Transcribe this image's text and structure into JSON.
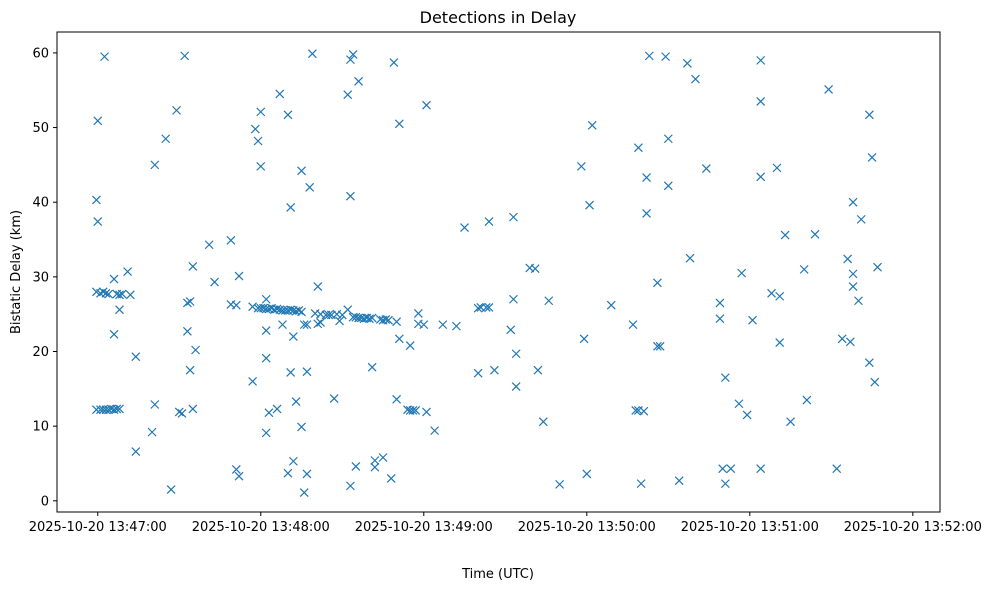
{
  "chart_data": {
    "type": "scatter",
    "title": "Detections in Delay",
    "xlabel": "Time (UTC)",
    "ylabel": "Bistatic Delay (km)",
    "marker": "x",
    "color": "#1f77b4",
    "grid": false,
    "legend": false,
    "x_units": "seconds after 2025-10-20 13:47:00 UTC",
    "xlim": [
      -15,
      310
    ],
    "ylim": [
      -1.5,
      62.8
    ],
    "x_ticks": [
      0,
      60,
      120,
      180,
      240,
      300
    ],
    "x_tick_labels": [
      "2025-10-20 13:47:00",
      "2025-10-20 13:48:00",
      "2025-10-20 13:49:00",
      "2025-10-20 13:50:00",
      "2025-10-20 13:51:00",
      "2025-10-20 13:52:00"
    ],
    "y_ticks": [
      0,
      10,
      20,
      30,
      40,
      50,
      60
    ],
    "y_tick_labels": [
      "0",
      "10",
      "20",
      "30",
      "40",
      "50",
      "60"
    ],
    "points": [
      [
        -0.5,
        40.3
      ],
      [
        0.0,
        37.4
      ],
      [
        0.0,
        50.9
      ],
      [
        2.5,
        59.5
      ],
      [
        6.0,
        29.7
      ],
      [
        11.0,
        30.7
      ],
      [
        -0.5,
        28.0
      ],
      [
        1.0,
        27.8
      ],
      [
        2.0,
        28.0
      ],
      [
        3.0,
        27.8
      ],
      [
        4.0,
        27.7
      ],
      [
        7.0,
        27.7
      ],
      [
        8.0,
        27.6
      ],
      [
        9.0,
        27.7
      ],
      [
        12.0,
        27.6
      ],
      [
        8.0,
        25.6
      ],
      [
        6.0,
        22.3
      ],
      [
        14.0,
        19.3
      ],
      [
        14.0,
        6.6
      ],
      [
        20.0,
        9.2
      ],
      [
        -0.5,
        12.2
      ],
      [
        1.0,
        12.2
      ],
      [
        2.0,
        12.2
      ],
      [
        3.0,
        12.2
      ],
      [
        4.0,
        12.2
      ],
      [
        5.0,
        12.3
      ],
      [
        6.0,
        12.2
      ],
      [
        7.0,
        12.3
      ],
      [
        8.0,
        12.3
      ],
      [
        21.0,
        45.0
      ],
      [
        21.0,
        12.9
      ],
      [
        25.0,
        48.5
      ],
      [
        27.0,
        1.5
      ],
      [
        29.0,
        52.3
      ],
      [
        30.0,
        11.9
      ],
      [
        31.0,
        11.7
      ],
      [
        32.0,
        59.6
      ],
      [
        33.0,
        26.5
      ],
      [
        34.0,
        26.7
      ],
      [
        33.0,
        22.7
      ],
      [
        34.0,
        17.5
      ],
      [
        35.0,
        31.4
      ],
      [
        35.0,
        12.3
      ],
      [
        36.0,
        20.2
      ],
      [
        41.0,
        34.3
      ],
      [
        43.0,
        29.3
      ],
      [
        49.0,
        34.9
      ],
      [
        49.0,
        26.3
      ],
      [
        51.0,
        26.2
      ],
      [
        51.0,
        4.2
      ],
      [
        52.0,
        30.1
      ],
      [
        52.0,
        3.3
      ],
      [
        57.0,
        26.0
      ],
      [
        57.0,
        16.0
      ],
      [
        58.0,
        49.8
      ],
      [
        59.0,
        48.2
      ],
      [
        60.0,
        52.1
      ],
      [
        60.0,
        44.8
      ],
      [
        59.0,
        25.8
      ],
      [
        60.0,
        25.8
      ],
      [
        61.0,
        25.8
      ],
      [
        62.0,
        25.7
      ],
      [
        63.0,
        25.7
      ],
      [
        64.0,
        25.8
      ],
      [
        65.0,
        25.6
      ],
      [
        66.0,
        25.7
      ],
      [
        67.0,
        25.6
      ],
      [
        68.0,
        25.5
      ],
      [
        69.0,
        25.5
      ],
      [
        70.0,
        25.5
      ],
      [
        71.0,
        25.6
      ],
      [
        72.0,
        25.5
      ],
      [
        73.0,
        25.4
      ],
      [
        74.0,
        25.5
      ],
      [
        75.0,
        25.3
      ],
      [
        62.0,
        27.0
      ],
      [
        62.0,
        22.8
      ],
      [
        62.0,
        19.1
      ],
      [
        62.0,
        9.1
      ],
      [
        63.0,
        11.8
      ],
      [
        66.0,
        12.3
      ],
      [
        67.0,
        54.5
      ],
      [
        68.0,
        23.6
      ],
      [
        70.0,
        51.7
      ],
      [
        71.0,
        39.3
      ],
      [
        71.0,
        17.2
      ],
      [
        72.0,
        22.0
      ],
      [
        72.0,
        5.3
      ],
      [
        73.0,
        13.3
      ],
      [
        70.0,
        3.7
      ],
      [
        75.0,
        44.2
      ],
      [
        76.0,
        23.6
      ],
      [
        75.0,
        9.9
      ],
      [
        76.0,
        1.1
      ],
      [
        77.0,
        23.6
      ],
      [
        77.0,
        17.3
      ],
      [
        77.0,
        3.6
      ],
      [
        78.0,
        42.0
      ],
      [
        80.0,
        25.1
      ],
      [
        81.0,
        28.7
      ],
      [
        79.0,
        59.9
      ],
      [
        81.0,
        23.7
      ],
      [
        82.0,
        25.0
      ],
      [
        82.0,
        23.9
      ],
      [
        84.0,
        24.9
      ],
      [
        85.0,
        24.9
      ],
      [
        86.0,
        24.9
      ],
      [
        87.0,
        13.7
      ],
      [
        88.0,
        25.0
      ],
      [
        89.0,
        24.1
      ],
      [
        90.0,
        24.9
      ],
      [
        92.0,
        54.4
      ],
      [
        92.0,
        25.6
      ],
      [
        93.0,
        59.1
      ],
      [
        94.0,
        59.8
      ],
      [
        93.0,
        40.8
      ],
      [
        95.0,
        4.6
      ],
      [
        93.0,
        2.0
      ],
      [
        96.0,
        56.2
      ],
      [
        94.0,
        24.6
      ],
      [
        95.0,
        24.6
      ],
      [
        96.0,
        24.5
      ],
      [
        97.0,
        24.5
      ],
      [
        98.0,
        24.4
      ],
      [
        99.0,
        24.5
      ],
      [
        100.0,
        24.4
      ],
      [
        101.0,
        24.5
      ],
      [
        101.0,
        17.9
      ],
      [
        102.0,
        5.4
      ],
      [
        102.0,
        4.5
      ],
      [
        105.0,
        5.8
      ],
      [
        104.0,
        24.3
      ],
      [
        105.0,
        24.2
      ],
      [
        106.0,
        24.3
      ],
      [
        107.0,
        24.2
      ],
      [
        109.0,
        58.7
      ],
      [
        108.0,
        3.0
      ],
      [
        110.0,
        13.6
      ],
      [
        110.0,
        24.0
      ],
      [
        111.0,
        50.5
      ],
      [
        111.0,
        21.7
      ],
      [
        114.0,
        12.2
      ],
      [
        115.0,
        20.8
      ],
      [
        115.0,
        12.1
      ],
      [
        116.0,
        12.1
      ],
      [
        117.0,
        12.1
      ],
      [
        118.0,
        25.1
      ],
      [
        118.0,
        23.7
      ],
      [
        120.0,
        23.6
      ],
      [
        121.0,
        11.9
      ],
      [
        121.0,
        53.0
      ],
      [
        124.0,
        9.4
      ],
      [
        127.0,
        23.6
      ],
      [
        132.0,
        23.4
      ],
      [
        135.0,
        36.6
      ],
      [
        140.0,
        17.1
      ],
      [
        140.0,
        25.8
      ],
      [
        141.0,
        25.9
      ],
      [
        143.0,
        25.9
      ],
      [
        144.0,
        37.4
      ],
      [
        144.0,
        25.9
      ],
      [
        146.0,
        17.5
      ],
      [
        152.0,
        22.9
      ],
      [
        153.0,
        27.0
      ],
      [
        153.0,
        38.0
      ],
      [
        154.0,
        19.7
      ],
      [
        154.0,
        15.3
      ],
      [
        159.0,
        31.2
      ],
      [
        161.0,
        31.1
      ],
      [
        162.0,
        17.5
      ],
      [
        164.0,
        10.6
      ],
      [
        166.0,
        26.8
      ],
      [
        170.0,
        2.2
      ],
      [
        178.0,
        44.8
      ],
      [
        179.0,
        21.7
      ],
      [
        180.0,
        3.6
      ],
      [
        181.0,
        39.6
      ],
      [
        182.0,
        50.3
      ],
      [
        189.0,
        26.2
      ],
      [
        197.0,
        23.6
      ],
      [
        198.0,
        12.1
      ],
      [
        199.0,
        12.1
      ],
      [
        201.0,
        12.0
      ],
      [
        199.0,
        47.3
      ],
      [
        200.0,
        2.3
      ],
      [
        202.0,
        43.3
      ],
      [
        202.0,
        38.5
      ],
      [
        203.0,
        59.6
      ],
      [
        206.0,
        29.2
      ],
      [
        206.0,
        20.7
      ],
      [
        207.0,
        20.7
      ],
      [
        209.0,
        59.5
      ],
      [
        210.0,
        48.5
      ],
      [
        210.0,
        42.2
      ],
      [
        214.0,
        2.7
      ],
      [
        217.0,
        58.6
      ],
      [
        218.0,
        32.5
      ],
      [
        220.0,
        56.5
      ],
      [
        224.0,
        44.5
      ],
      [
        229.0,
        24.4
      ],
      [
        229.0,
        26.5
      ],
      [
        230.0,
        4.3
      ],
      [
        231.0,
        16.5
      ],
      [
        231.0,
        2.3
      ],
      [
        233.0,
        4.3
      ],
      [
        236.0,
        13.0
      ],
      [
        237.0,
        30.5
      ],
      [
        239.0,
        11.5
      ],
      [
        241.0,
        24.2
      ],
      [
        244.0,
        59.0
      ],
      [
        244.0,
        53.5
      ],
      [
        244.0,
        43.4
      ],
      [
        244.0,
        4.3
      ],
      [
        248.0,
        27.8
      ],
      [
        250.0,
        44.6
      ],
      [
        251.0,
        27.4
      ],
      [
        251.0,
        21.2
      ],
      [
        253.0,
        35.6
      ],
      [
        255.0,
        10.6
      ],
      [
        260.0,
        31.0
      ],
      [
        261.0,
        13.5
      ],
      [
        264.0,
        35.7
      ],
      [
        269.0,
        55.1
      ],
      [
        272.0,
        4.3
      ],
      [
        274.0,
        21.7
      ],
      [
        277.0,
        21.3
      ],
      [
        276.0,
        32.4
      ],
      [
        278.0,
        40.0
      ],
      [
        278.0,
        30.4
      ],
      [
        278.0,
        28.7
      ],
      [
        280.0,
        26.8
      ],
      [
        281.0,
        37.7
      ],
      [
        284.0,
        51.7
      ],
      [
        285.0,
        46.0
      ],
      [
        284.0,
        18.5
      ],
      [
        286.0,
        15.9
      ],
      [
        287.0,
        31.3
      ]
    ]
  }
}
